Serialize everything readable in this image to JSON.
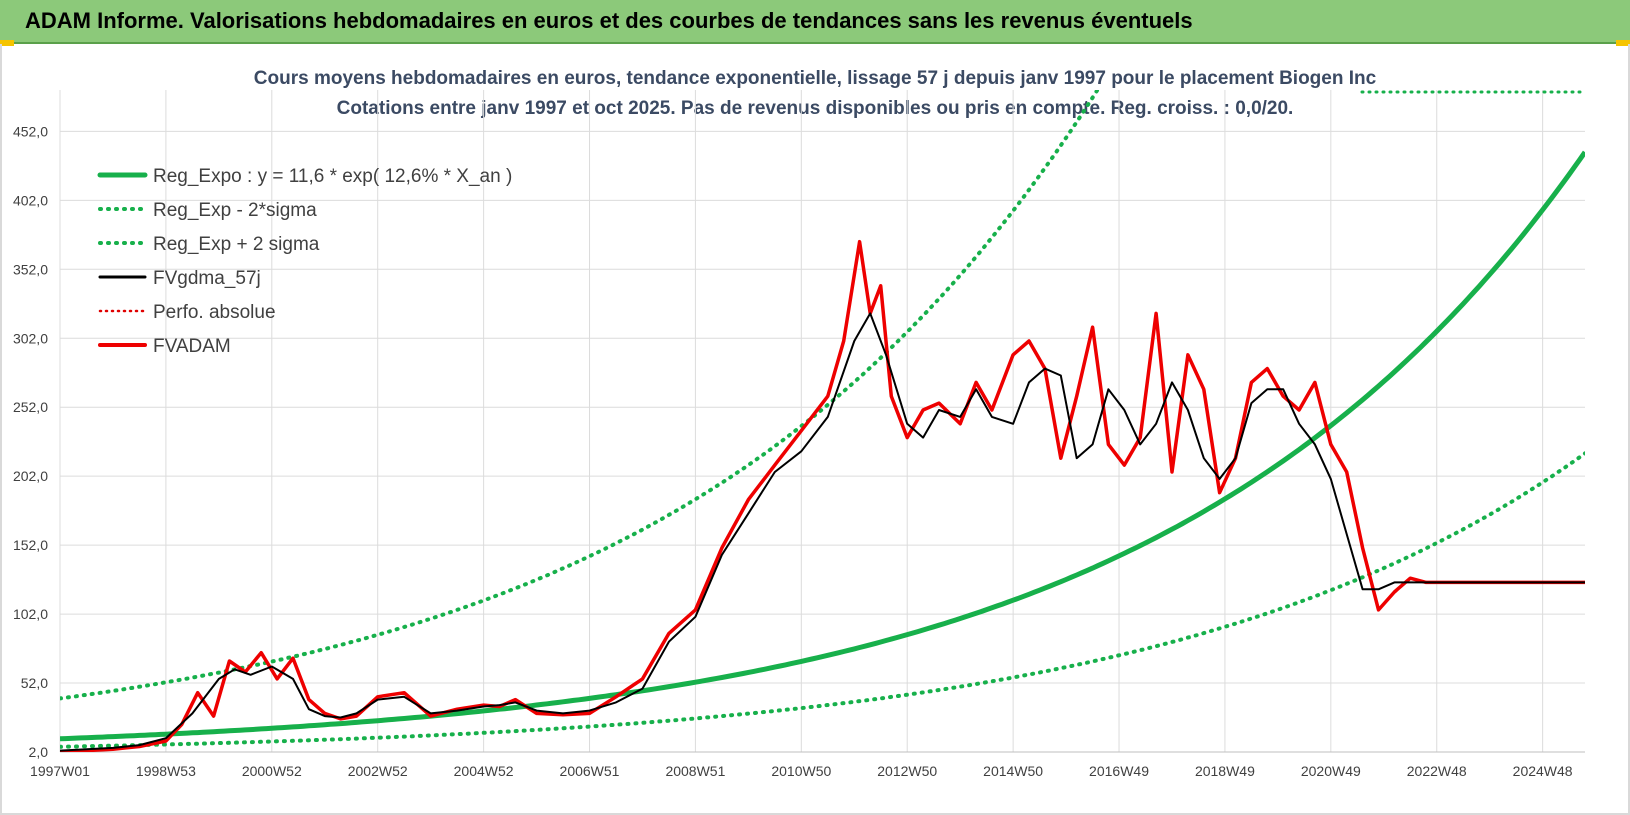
{
  "header": {
    "title": "ADAM Informe. Valorisations hebdomadaires en euros et des courbes de tendances sans les revenus éventuels"
  },
  "chart_data": {
    "type": "line",
    "title": "Cours moyens hebdomadaires en euros, tendance exponentielle, lissage 57 j depuis janv 1997 pour le placement Biogen Inc",
    "subtitle": "Cotations entre janv 1997 et oct 2025. Pas de revenus disponibles ou pris en compte. Reg. croiss. : 0,0/20.",
    "xlabel": "",
    "ylabel": "",
    "ylim": [
      2,
      482
    ],
    "y_ticks": [
      "2,0",
      "52,0",
      "102,0",
      "152,0",
      "202,0",
      "252,0",
      "302,0",
      "352,0",
      "402,0",
      "452,0"
    ],
    "x_ticks": [
      "1997W01",
      "1998W53",
      "2000W52",
      "2002W52",
      "2004W52",
      "2006W51",
      "2008W51",
      "2010W50",
      "2012W50",
      "2014W50",
      "2016W49",
      "2018W49",
      "2020W49",
      "2022W48",
      "2024W48"
    ],
    "x_tick_years": [
      0,
      2,
      4,
      6,
      8,
      10,
      12,
      14,
      16,
      18,
      20,
      22,
      24,
      26,
      28
    ],
    "x_range_years": [
      0,
      28.8
    ],
    "grid": true,
    "legend_position": "top-left",
    "regression": {
      "a": 11.6,
      "rate": 0.126,
      "sigma_factor_minus": 0.5,
      "sigma_factor_plus": 3.52
    },
    "series": [
      {
        "name": "Reg_Expo : y = 11,6 * exp( 12,6% *  X_an )",
        "color": "#17b04b",
        "style": "solid"
      },
      {
        "name": "Reg_Exp - 2*sigma",
        "color": "#17b04b",
        "style": "dotted"
      },
      {
        "name": "Reg_Exp + 2 sigma",
        "color": "#17b04b",
        "style": "dotted"
      },
      {
        "name": "FVgdma_57j",
        "color": "#000000",
        "style": "solid",
        "x": [
          0,
          0.5,
          1,
          1.5,
          2,
          2.5,
          3,
          3.3,
          3.6,
          4,
          4.4,
          4.7,
          5,
          5.3,
          5.6,
          6,
          6.5,
          7,
          7.5,
          8,
          8.3,
          8.6,
          9,
          9.5,
          10,
          10.5,
          11,
          11.5,
          12,
          12.5,
          13,
          13.5,
          14,
          14.5,
          15,
          15.3,
          15.6,
          16,
          16.3,
          16.6,
          17,
          17.3,
          17.6,
          18,
          18.3,
          18.6,
          18.9,
          19.2,
          19.5,
          19.8,
          20.1,
          20.4,
          20.7,
          21,
          21.3,
          21.6,
          21.9,
          22.2,
          22.5,
          22.8,
          23.1,
          23.4,
          23.7,
          24,
          24.3,
          24.6,
          24.9,
          25.2,
          25.5,
          25.8,
          26.1,
          26.4,
          26.7,
          27,
          27.3,
          27.6,
          27.9,
          28.2,
          28.5,
          28.8
        ],
        "y": [
          3,
          4,
          5,
          7,
          12,
          30,
          55,
          62,
          58,
          64,
          55,
          33,
          28,
          27,
          30,
          40,
          42,
          30,
          32,
          35,
          36,
          38,
          32,
          30,
          32,
          38,
          48,
          82,
          100,
          145,
          175,
          205,
          220,
          245,
          300,
          320,
          290,
          240,
          230,
          250,
          245,
          265,
          245,
          240,
          270,
          280,
          275,
          215,
          225,
          265,
          250,
          225,
          240,
          270,
          250,
          215,
          200,
          215,
          255,
          265,
          265,
          240,
          225,
          200,
          160,
          120,
          120,
          125,
          125,
          125,
          125,
          125,
          125,
          125,
          125,
          125,
          125,
          125,
          125,
          125
        ]
      },
      {
        "name": "Perfo. absolue",
        "color": "#e00000",
        "style": "dotted"
      },
      {
        "name": "FVADAM",
        "color": "#ee0000",
        "style": "solid",
        "x": [
          0,
          0.5,
          1,
          1.5,
          2,
          2.3,
          2.6,
          2.9,
          3.2,
          3.5,
          3.8,
          4.1,
          4.4,
          4.7,
          5,
          5.3,
          5.6,
          6,
          6.5,
          7,
          7.5,
          8,
          8.3,
          8.6,
          9,
          9.5,
          10,
          10.5,
          11,
          11.5,
          12,
          12.5,
          13,
          13.5,
          14,
          14.5,
          14.8,
          15.1,
          15.3,
          15.5,
          15.7,
          16,
          16.3,
          16.6,
          17,
          17.3,
          17.6,
          18,
          18.3,
          18.6,
          18.9,
          19.2,
          19.5,
          19.8,
          20.1,
          20.4,
          20.7,
          21,
          21.3,
          21.6,
          21.9,
          22.2,
          22.5,
          22.8,
          23.1,
          23.4,
          23.7,
          24,
          24.3,
          24.6,
          24.9,
          25.2,
          25.5,
          25.8,
          26.1,
          26.4,
          26.7,
          27,
          27.3,
          27.6,
          27.9,
          28.2,
          28.5,
          28.8
        ],
        "y": [
          2,
          3,
          4,
          6,
          10,
          22,
          45,
          28,
          68,
          60,
          74,
          55,
          70,
          40,
          30,
          26,
          28,
          42,
          45,
          28,
          33,
          36,
          35,
          40,
          30,
          29,
          30,
          42,
          55,
          88,
          105,
          150,
          185,
          210,
          235,
          260,
          300,
          372,
          320,
          340,
          260,
          230,
          250,
          255,
          240,
          270,
          250,
          290,
          300,
          280,
          215,
          260,
          310,
          225,
          210,
          230,
          320,
          205,
          290,
          265,
          190,
          215,
          270,
          280,
          260,
          250,
          270,
          225,
          205,
          150,
          105,
          118,
          128,
          125,
          125,
          125,
          125,
          125,
          125,
          125,
          125,
          125,
          125,
          125
        ]
      }
    ]
  }
}
